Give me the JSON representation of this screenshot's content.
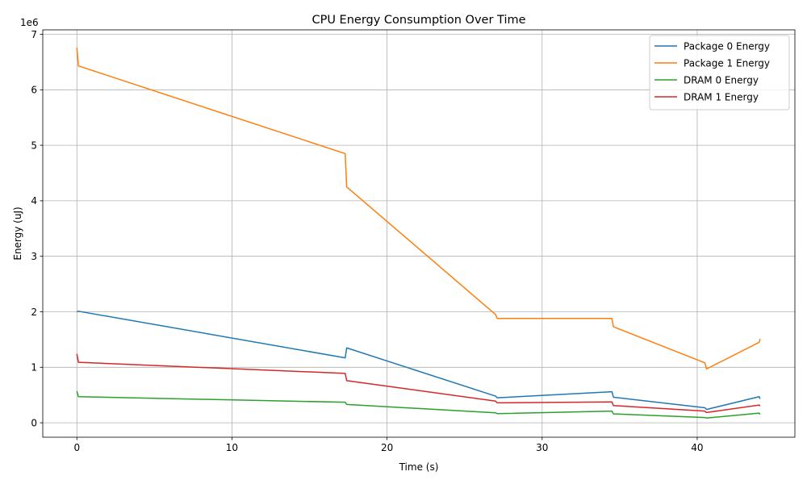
{
  "chart_data": {
    "type": "line",
    "title": "CPU Energy Consumption Over Time",
    "xlabel": "Time (s)",
    "ylabel": "Energy (uJ)",
    "y_offset_label": "1e6",
    "y_scale_factor": 1000000,
    "xlim": [
      -2.2,
      46.3
    ],
    "ylim": [
      -260000,
      7080000
    ],
    "xticks": [
      0,
      10,
      20,
      30,
      40
    ],
    "yticks": [
      0,
      1,
      2,
      3,
      4,
      5,
      6,
      7
    ],
    "grid": true,
    "legend_position": "top-right",
    "series": [
      {
        "name": "Package 0 Energy",
        "color": "#1f77b4",
        "points": [
          [
            0,
            2000000
          ],
          [
            0.1,
            2010000
          ],
          [
            17.3,
            1170000
          ],
          [
            17.4,
            1350000
          ],
          [
            27.0,
            480000
          ],
          [
            27.1,
            450000
          ],
          [
            34.5,
            560000
          ],
          [
            34.6,
            460000
          ],
          [
            40.5,
            270000
          ],
          [
            40.6,
            240000
          ],
          [
            44.0,
            470000
          ],
          [
            44.05,
            430000
          ]
        ]
      },
      {
        "name": "Package 1 Energy",
        "color": "#ff7f0e",
        "points": [
          [
            0,
            6760000
          ],
          [
            0.1,
            6430000
          ],
          [
            17.3,
            4850000
          ],
          [
            17.4,
            4250000
          ],
          [
            27.0,
            1950000
          ],
          [
            27.1,
            1880000
          ],
          [
            34.5,
            1880000
          ],
          [
            34.6,
            1730000
          ],
          [
            40.5,
            1080000
          ],
          [
            40.6,
            970000
          ],
          [
            44.0,
            1450000
          ],
          [
            44.05,
            1510000
          ]
        ]
      },
      {
        "name": "DRAM 0 Energy",
        "color": "#2ca02c",
        "points": [
          [
            0,
            570000
          ],
          [
            0.1,
            470000
          ],
          [
            17.3,
            370000
          ],
          [
            17.4,
            330000
          ],
          [
            27.0,
            180000
          ],
          [
            27.1,
            165000
          ],
          [
            34.5,
            210000
          ],
          [
            34.6,
            160000
          ],
          [
            40.5,
            95000
          ],
          [
            40.6,
            85000
          ],
          [
            44.0,
            175000
          ],
          [
            44.05,
            150000
          ]
        ]
      },
      {
        "name": "DRAM 1 Energy",
        "color": "#d62728",
        "points": [
          [
            0,
            1240000
          ],
          [
            0.1,
            1090000
          ],
          [
            17.3,
            890000
          ],
          [
            17.4,
            760000
          ],
          [
            27.0,
            390000
          ],
          [
            27.1,
            360000
          ],
          [
            34.5,
            375000
          ],
          [
            34.6,
            310000
          ],
          [
            40.5,
            210000
          ],
          [
            40.6,
            185000
          ],
          [
            44.0,
            320000
          ],
          [
            44.05,
            300000
          ]
        ]
      }
    ]
  }
}
